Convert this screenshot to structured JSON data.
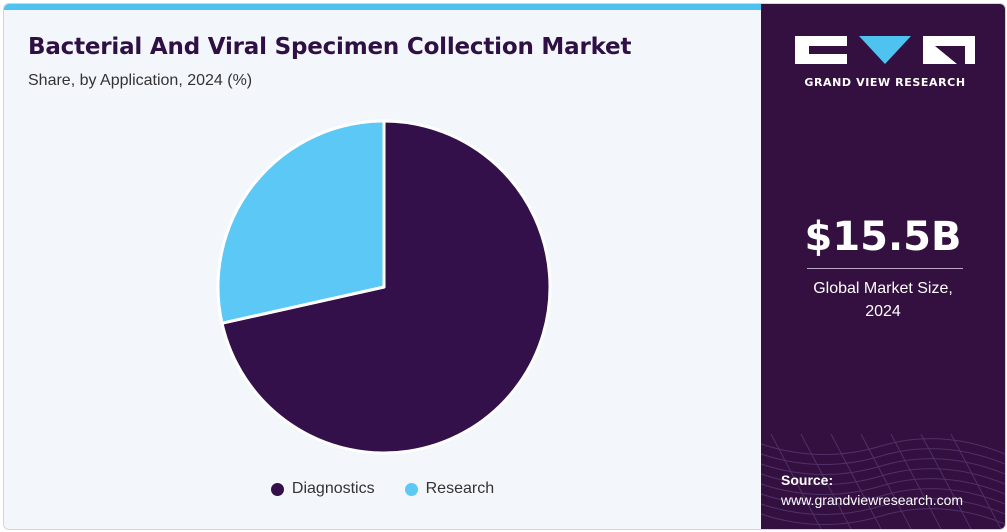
{
  "header": {
    "title": "Bacterial And Viral Specimen Collection Market",
    "subtitle": "Share, by Application, 2024 (%)"
  },
  "chart_data": {
    "type": "pie",
    "categories": [
      "Diagnostics",
      "Research"
    ],
    "values": [
      71.5,
      28.5
    ],
    "colors": [
      "#34104a",
      "#5bc8f5"
    ],
    "legend_position": "bottom-center"
  },
  "brand": {
    "name": "GRAND VIEW RESEARCH",
    "logo_icon": "gvr-logo-icon"
  },
  "stats": {
    "value": "$15.5B",
    "label_line1": "Global Market Size,",
    "label_line2": "2024"
  },
  "source": {
    "label": "Source:",
    "url": "www.grandviewresearch.com"
  },
  "colors": {
    "accent": "#4fc3f0",
    "panel": "#33103f",
    "background": "#f3f7fb"
  }
}
